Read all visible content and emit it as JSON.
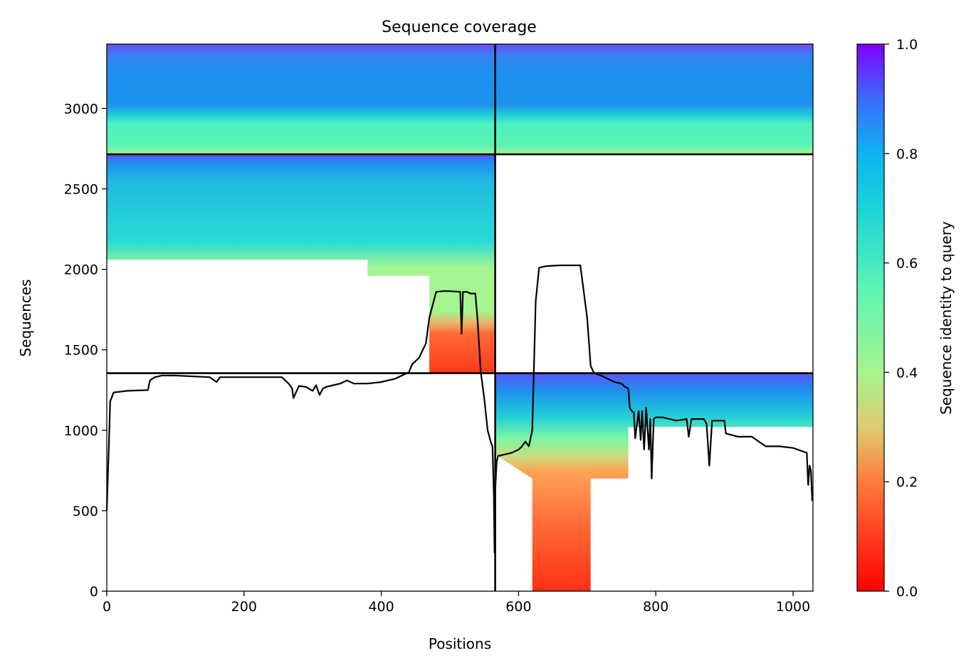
{
  "chart_data": {
    "type": "heatmap",
    "title": "Sequence coverage",
    "xlabel": "Positions",
    "ylabel": "Sequences",
    "xlim": [
      0,
      1029
    ],
    "ylim": [
      0,
      3400
    ],
    "x_ticks": [
      0,
      200,
      400,
      600,
      800,
      1000
    ],
    "y_ticks": [
      0,
      500,
      1000,
      1500,
      2000,
      2500,
      3000
    ],
    "x_tick_labels": [
      "0",
      "200",
      "400",
      "600",
      "800",
      "1000"
    ],
    "y_tick_labels": [
      "0",
      "500",
      "1000",
      "1500",
      "2000",
      "2500",
      "3000"
    ],
    "colorbar": {
      "label": "Sequence identity to query",
      "range": [
        0.0,
        1.0
      ],
      "ticks": [
        0.0,
        0.2,
        0.4,
        0.6,
        0.8,
        1.0
      ],
      "tick_labels": [
        "0.0",
        "0.2",
        "0.4",
        "0.6",
        "0.8",
        "1.0"
      ],
      "colormap": "rainbow_r"
    },
    "grid": false,
    "chain_boundaries": {
      "x": [
        566
      ],
      "y": [
        1355,
        2715
      ]
    },
    "coverage_line": {
      "name": "coverage",
      "x": [
        0,
        2,
        3,
        5,
        10,
        30,
        60,
        63,
        70,
        80,
        100,
        150,
        160,
        165,
        200,
        250,
        255,
        265,
        270,
        272,
        280,
        290,
        300,
        305,
        310,
        315,
        320,
        330,
        340,
        350,
        360,
        380,
        400,
        420,
        440,
        445,
        455,
        465,
        470,
        480,
        490,
        500,
        515,
        517,
        519,
        521,
        525,
        530,
        537,
        540,
        545,
        550,
        555,
        560,
        562,
        564,
        565,
        566,
        568,
        570,
        580,
        590,
        600,
        605,
        610,
        615,
        620,
        625,
        630,
        640,
        660,
        680,
        690,
        700,
        705,
        710,
        720,
        740,
        750,
        755,
        760,
        762,
        765,
        768,
        770,
        775,
        778,
        780,
        783,
        786,
        790,
        792,
        794,
        797,
        800,
        810,
        830,
        845,
        848,
        852,
        870,
        874,
        878,
        882,
        900,
        902,
        920,
        940,
        960,
        980,
        1000,
        1020,
        1022,
        1024,
        1026,
        1028
      ],
      "y": [
        500,
        770,
        900,
        1180,
        1235,
        1245,
        1250,
        1310,
        1330,
        1340,
        1340,
        1330,
        1300,
        1330,
        1330,
        1330,
        1330,
        1290,
        1260,
        1200,
        1275,
        1270,
        1245,
        1280,
        1220,
        1260,
        1270,
        1280,
        1290,
        1310,
        1290,
        1290,
        1300,
        1320,
        1360,
        1410,
        1450,
        1540,
        1700,
        1860,
        1865,
        1865,
        1860,
        1600,
        1860,
        1860,
        1860,
        1850,
        1850,
        1700,
        1360,
        1200,
        1000,
        920,
        900,
        600,
        240,
        620,
        800,
        840,
        850,
        860,
        880,
        900,
        930,
        900,
        1000,
        1800,
        2010,
        2020,
        2025,
        2025,
        2025,
        1700,
        1400,
        1355,
        1340,
        1300,
        1290,
        1270,
        1260,
        1140,
        1120,
        1110,
        950,
        1120,
        940,
        1120,
        880,
        1140,
        880,
        1070,
        700,
        1070,
        1080,
        1080,
        1060,
        1070,
        960,
        1070,
        1070,
        1040,
        780,
        1060,
        1060,
        980,
        960,
        960,
        900,
        900,
        890,
        860,
        660,
        780,
        750,
        560
      ]
    },
    "coverage_blocks": [
      {
        "name": "chain-1-self",
        "x": [
          0,
          566
        ],
        "y": [
          2715,
          3400
        ],
        "identity_top": 0.95,
        "identity_bottom": 0.45
      },
      {
        "name": "chain-2-paired",
        "x": [
          566,
          1029
        ],
        "y": [
          2715,
          3400
        ],
        "identity_top": 0.95,
        "identity_bottom": 0.45
      },
      {
        "name": "chain-1-unpaired",
        "x": [
          0,
          566
        ],
        "y": [
          1355,
          2715
        ],
        "identity_top": 0.9,
        "identity_bottom": 0.02
      },
      {
        "name": "chain-2-unpaired",
        "x": [
          566,
          1029
        ],
        "y": [
          0,
          1355
        ],
        "identity_top": 0.9,
        "identity_bottom": 0.02
      }
    ]
  }
}
